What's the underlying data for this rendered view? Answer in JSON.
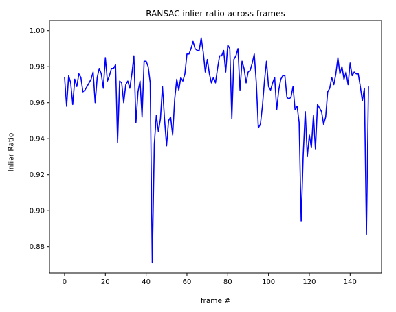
{
  "chart_data": {
    "type": "line",
    "title": "RANSAC inlier ratio across frames",
    "xlabel": "frame #",
    "ylabel": "Inlier Ratio",
    "xlim": [
      -7.4,
      155.4
    ],
    "ylim": [
      0.8654,
      1.0056
    ],
    "xticks": [
      0,
      20,
      40,
      60,
      80,
      100,
      120,
      140
    ],
    "yticks": [
      0.88,
      0.9,
      0.92,
      0.94,
      0.96,
      0.98,
      1.0
    ],
    "ytick_labels": [
      "0.88",
      "0.90",
      "0.92",
      "0.94",
      "0.96",
      "0.98",
      "1.00"
    ],
    "grid": false,
    "series": [
      {
        "color": "#0000ff",
        "y": [
          0.974,
          0.958,
          0.975,
          0.971,
          0.959,
          0.973,
          0.969,
          0.976,
          0.974,
          0.966,
          0.967,
          0.969,
          0.971,
          0.973,
          0.977,
          0.96,
          0.974,
          0.979,
          0.976,
          0.968,
          0.985,
          0.972,
          0.975,
          0.979,
          0.979,
          0.981,
          0.938,
          0.972,
          0.971,
          0.96,
          0.97,
          0.972,
          0.968,
          0.976,
          0.986,
          0.949,
          0.966,
          0.972,
          0.952,
          0.983,
          0.983,
          0.98,
          0.971,
          0.871,
          0.937,
          0.953,
          0.944,
          0.951,
          0.969,
          0.951,
          0.936,
          0.95,
          0.952,
          0.942,
          0.962,
          0.973,
          0.967,
          0.974,
          0.972,
          0.976,
          0.987,
          0.987,
          0.99,
          0.994,
          0.99,
          0.989,
          0.989,
          0.996,
          0.988,
          0.977,
          0.984,
          0.976,
          0.971,
          0.974,
          0.971,
          0.979,
          0.986,
          0.986,
          0.989,
          0.977,
          0.992,
          0.99,
          0.951,
          0.984,
          0.986,
          0.99,
          0.967,
          0.983,
          0.979,
          0.971,
          0.977,
          0.978,
          0.982,
          0.987,
          0.971,
          0.946,
          0.948,
          0.958,
          0.972,
          0.983,
          0.969,
          0.967,
          0.971,
          0.974,
          0.956,
          0.967,
          0.973,
          0.975,
          0.975,
          0.963,
          0.962,
          0.963,
          0.969,
          0.956,
          0.958,
          0.949,
          0.894,
          0.931,
          0.955,
          0.93,
          0.942,
          0.935,
          0.953,
          0.934,
          0.959,
          0.957,
          0.955,
          0.948,
          0.952,
          0.966,
          0.968,
          0.974,
          0.97,
          0.976,
          0.985,
          0.976,
          0.98,
          0.973,
          0.977,
          0.97,
          0.982,
          0.975,
          0.977,
          0.976,
          0.976,
          0.969,
          0.961,
          0.968,
          0.887,
          0.969
        ]
      }
    ]
  }
}
